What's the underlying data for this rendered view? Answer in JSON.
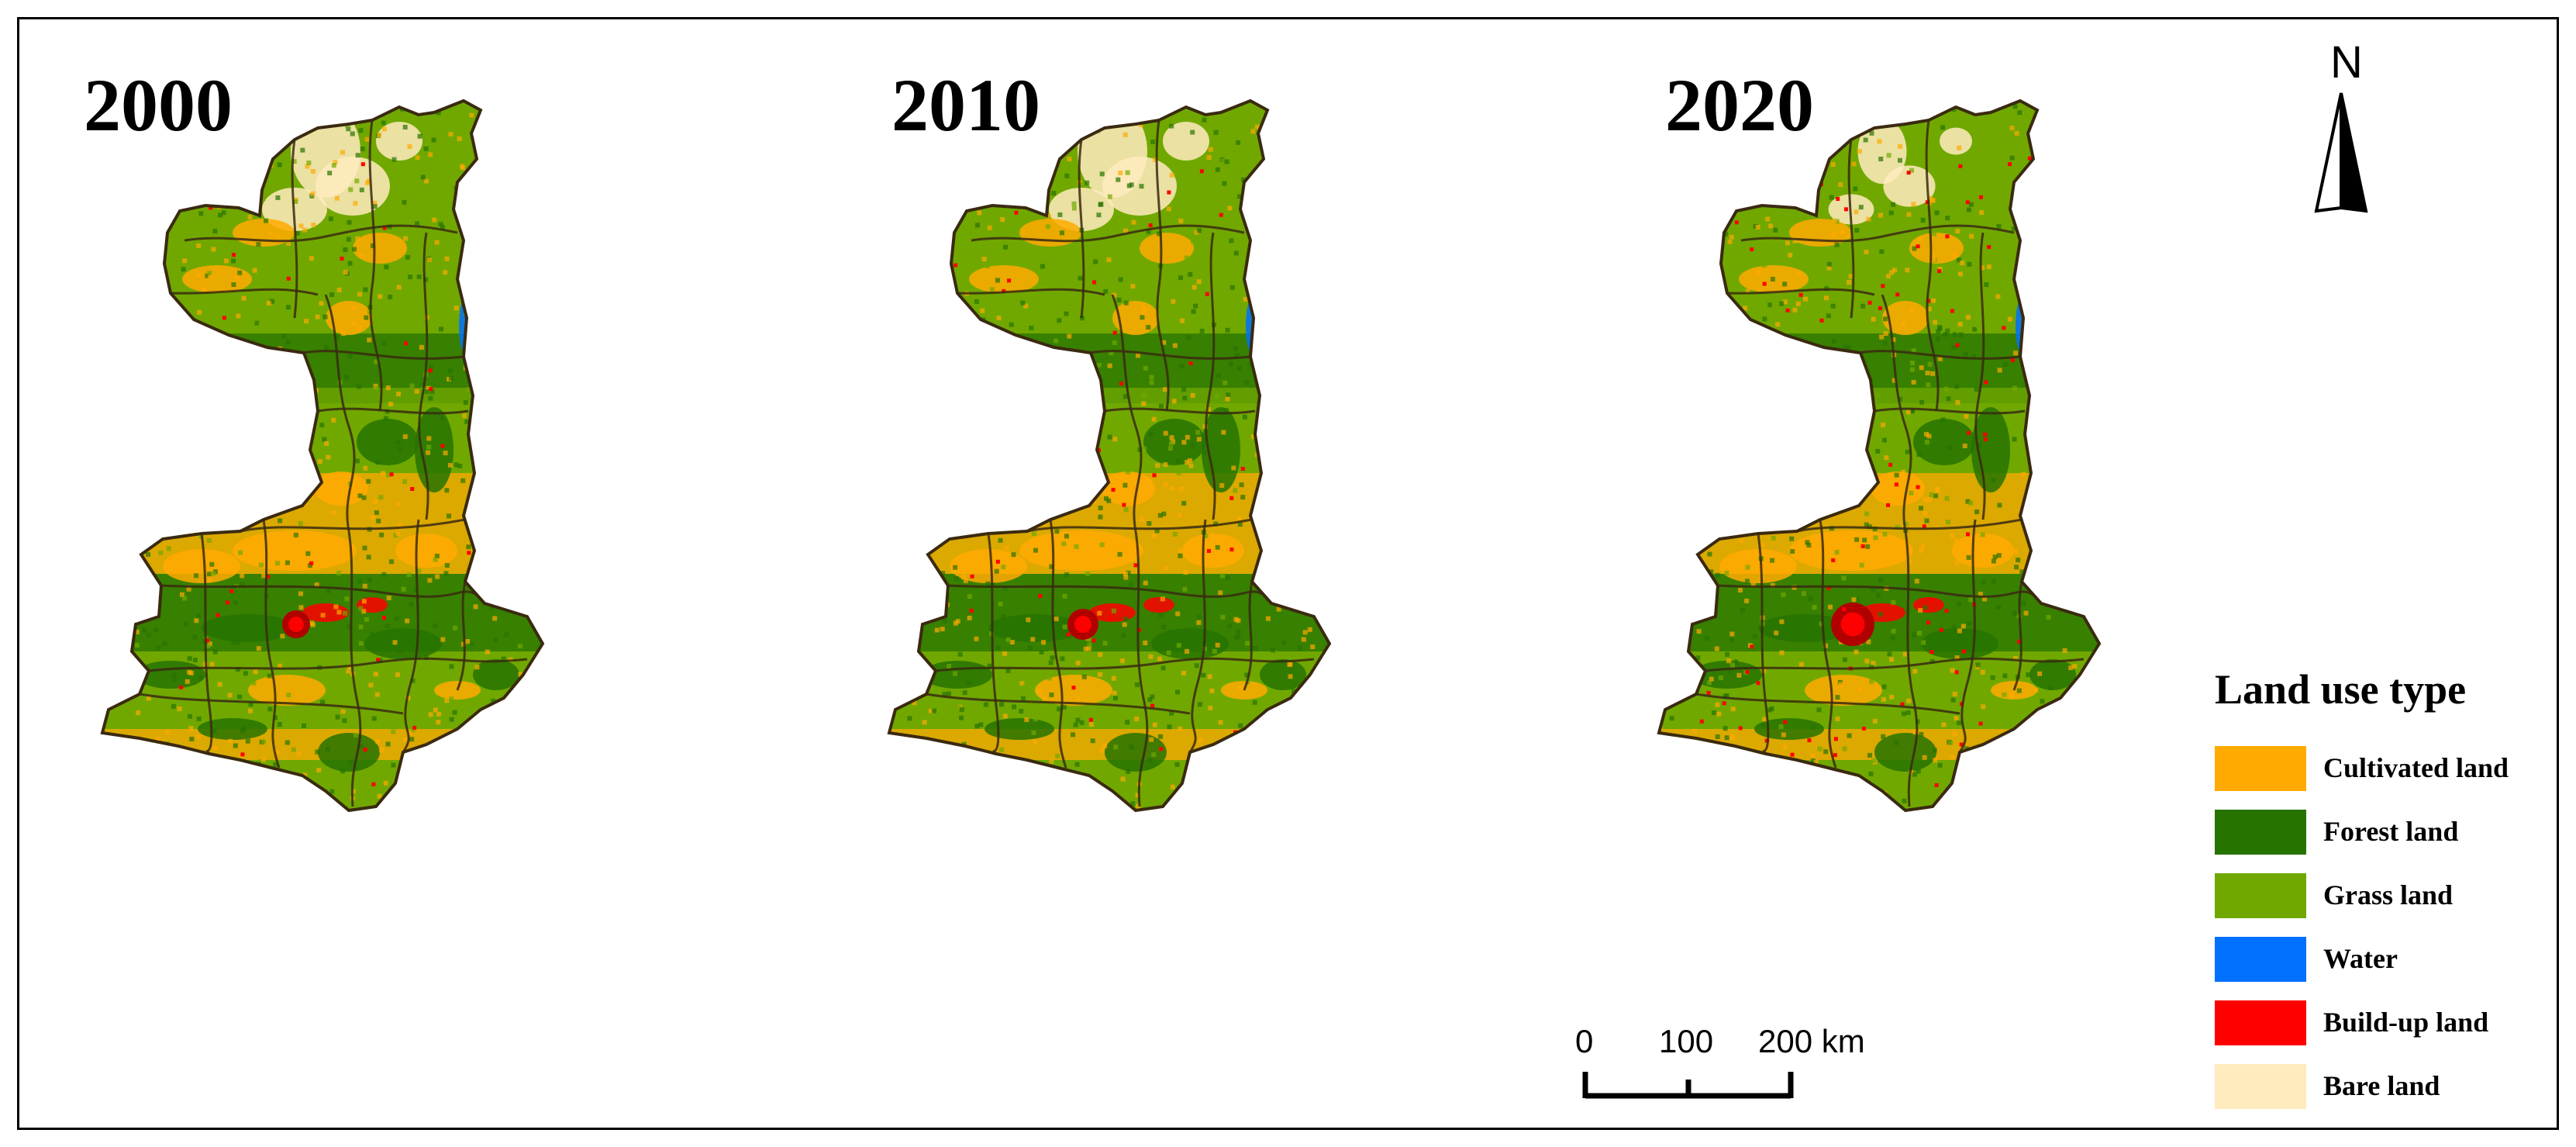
{
  "panels": [
    {
      "year": "2000"
    },
    {
      "year": "2010"
    },
    {
      "year": "2020"
    }
  ],
  "north_arrow": {
    "label": "N"
  },
  "legend": {
    "title": "Land use type",
    "items": [
      {
        "label": "Cultivated land",
        "color": "#FFAA00"
      },
      {
        "label": "Forest land",
        "color": "#267300"
      },
      {
        "label": "Grass land",
        "color": "#70A800"
      },
      {
        "label": "Water",
        "color": "#0070FF"
      },
      {
        "label": "Build-up land",
        "color": "#FF0000"
      },
      {
        "label": "Bare land",
        "color": "#FFEBBE"
      }
    ]
  },
  "scale_bar": {
    "tick_0": "0",
    "tick_100": "100",
    "tick_200": "200 km"
  },
  "colors": {
    "cultivated": "#FFAA00",
    "forest": "#267300",
    "grass": "#70A800",
    "water": "#0070FF",
    "buildup": "#FF0000",
    "bare": "#FFEBBE",
    "boundary": "#3a2a10"
  }
}
